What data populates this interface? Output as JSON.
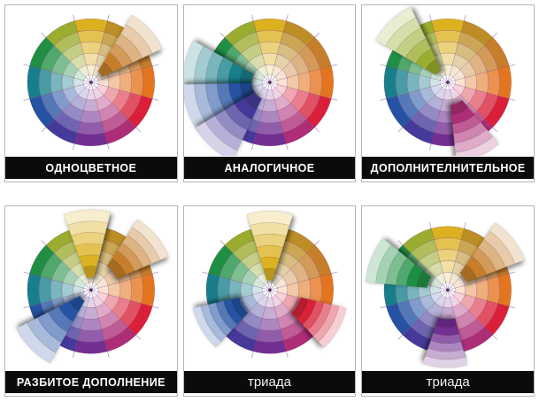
{
  "page": {
    "background": "#ffffff"
  },
  "wheel": {
    "hues": [
      {
        "name": "yellow",
        "hex": "#DCB120"
      },
      {
        "name": "yellow-orange",
        "hex": "#BC8E25"
      },
      {
        "name": "orange",
        "hex": "#C67E2B"
      },
      {
        "name": "red-orange",
        "hex": "#E4751F"
      },
      {
        "name": "red",
        "hex": "#D92038"
      },
      {
        "name": "red-violet",
        "hex": "#AD2D77"
      },
      {
        "name": "violet",
        "hex": "#722F92"
      },
      {
        "name": "blue-violet",
        "hex": "#45399A"
      },
      {
        "name": "blue",
        "hex": "#2552A3"
      },
      {
        "name": "blue-green",
        "hex": "#167F8B"
      },
      {
        "name": "green",
        "hex": "#1F8F44"
      },
      {
        "name": "yellow-green",
        "hex": "#9AAD2E"
      }
    ],
    "ring_radii": [
      0.12,
      0.28,
      0.46,
      0.64,
      0.82,
      1.0
    ],
    "ring_tints": [
      0.8,
      0.6,
      0.42,
      0.22,
      0
    ],
    "pop_band_tints": [
      0.78,
      0.6,
      0.42,
      0.22,
      0,
      -0.16
    ],
    "segment_stroke": "#7c3a6d",
    "tick_color": "#b5a4c9",
    "spoke_color": "#9b86a8",
    "center_dot_color": "#53285e",
    "radius": 72,
    "pop_half_angle": 17
  },
  "panels": [
    {
      "label": "ОДНОЦВЕТНОЕ",
      "popped": [
        {
          "hue": 2,
          "angle": 60,
          "tilt": -12,
          "r0": 0.18,
          "r1": 1.22,
          "off": 0.02
        }
      ]
    },
    {
      "label": "АНАЛОГИЧНОЕ",
      "popped": [
        {
          "hue": 9,
          "angle": 270,
          "tilt": 12,
          "r0": 0.26,
          "r1": 1.34,
          "off": 0.03
        },
        {
          "hue": 8,
          "angle": 240,
          "tilt": 12,
          "r0": 0.26,
          "r1": 1.34,
          "off": 0.03
        },
        {
          "hue": 7,
          "angle": 210,
          "tilt": 12,
          "r0": 0.26,
          "r1": 1.34,
          "off": 0.03
        }
      ]
    },
    {
      "label": "ДОПОЛНИТЕЛНИТЕЛЬНОЕ",
      "popped": [
        {
          "hue": 11,
          "angle": 330,
          "tilt": -13,
          "r0": 0.2,
          "r1": 1.3,
          "off": 0.02
        },
        {
          "hue": 5,
          "angle": 150,
          "tilt": 7,
          "r0": 0.34,
          "r1": 1.24,
          "off": 0.02
        }
      ]
    },
    {
      "label": "РАЗБИТОЕ ДОПОЛНЕНИЕ",
      "popped": [
        {
          "hue": 0,
          "angle": 0,
          "tilt": -3,
          "r0": 0.2,
          "r1": 1.26,
          "off": 0
        },
        {
          "hue": 2,
          "angle": 60,
          "tilt": -10,
          "r0": 0.42,
          "r1": 1.3,
          "off": 0.03
        },
        {
          "hue": 8,
          "angle": 240,
          "tilt": -14,
          "r0": 0.18,
          "r1": 1.3,
          "off": 0.02
        }
      ]
    },
    {
      "label": "триада",
      "popped": [
        {
          "hue": 0,
          "angle": 0,
          "tilt": 0,
          "r0": 0.16,
          "r1": 1.24,
          "off": 0
        },
        {
          "hue": 4,
          "angle": 120,
          "tilt": 0,
          "r0": 0.48,
          "r1": 1.22,
          "off": 0.02
        },
        {
          "hue": 8,
          "angle": 240,
          "tilt": 0,
          "r0": 0.48,
          "r1": 1.22,
          "off": 0.02
        }
      ]
    },
    {
      "label": "триада",
      "popped": [
        {
          "hue": 10,
          "angle": 300,
          "tilt": -8,
          "r0": 0.3,
          "r1": 1.27,
          "off": 0.03
        },
        {
          "hue": 2,
          "angle": 60,
          "tilt": -8,
          "r0": 0.3,
          "r1": 1.27,
          "off": 0.03
        },
        {
          "hue": 6,
          "angle": 180,
          "tilt": 2,
          "r0": 0.44,
          "r1": 1.2,
          "off": 0.02
        }
      ]
    }
  ]
}
